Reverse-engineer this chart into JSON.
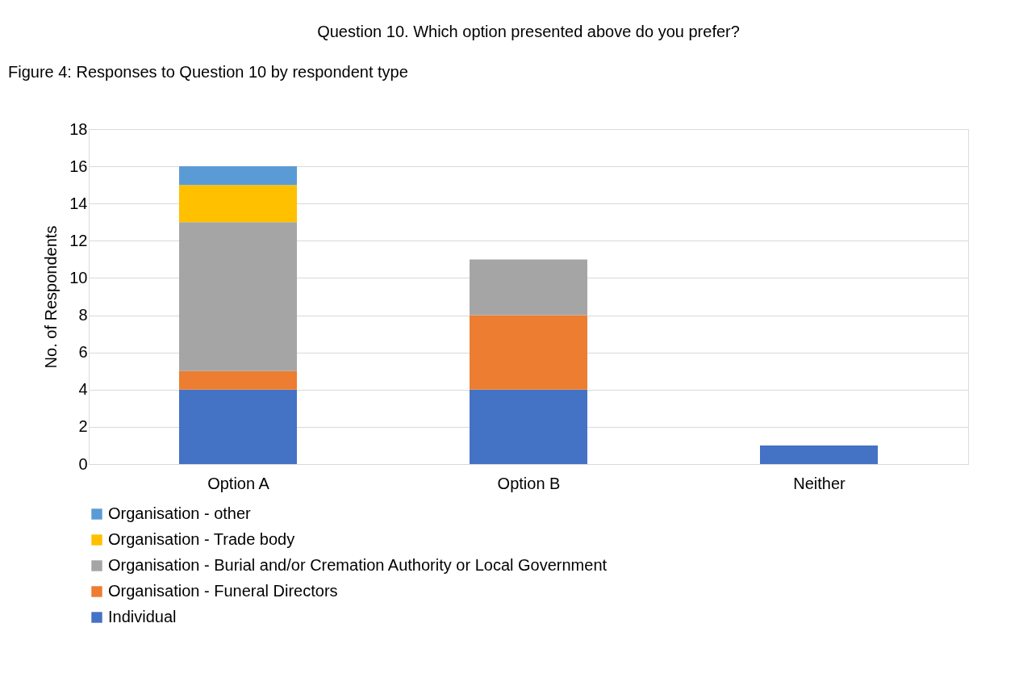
{
  "chart_data": {
    "type": "bar",
    "title": "Question 10. Which option presented above do you prefer?",
    "annotations": [
      "Figure 4: Responses to Question 10 by respondent type"
    ],
    "categories": [
      "Option A",
      "Option B",
      "Neither"
    ],
    "ylabel": "No. of Respondents",
    "stacked": true,
    "series": [
      {
        "name": "Individual",
        "color": "#4472c4",
        "values": [
          4,
          4,
          1
        ]
      },
      {
        "name": "Organisation - Funeral Directors",
        "color": "#ed7d31",
        "values": [
          1,
          4,
          0
        ]
      },
      {
        "name": "Organisation - Burial and/or Cremation Authority or Local Government",
        "color": "#a5a5a5",
        "values": [
          8,
          3,
          0
        ]
      },
      {
        "name": "Organisation - Trade body",
        "color": "#ffc000",
        "values": [
          2,
          0,
          0
        ]
      },
      {
        "name": "Organisation - other",
        "color": "#5b9bd5",
        "values": [
          1,
          0,
          0
        ]
      }
    ],
    "ylim": [
      0,
      18
    ],
    "yticks": [
      0,
      2,
      4,
      6,
      8,
      10,
      12,
      14,
      16,
      18
    ],
    "grid": "y",
    "legend": "bottom"
  }
}
